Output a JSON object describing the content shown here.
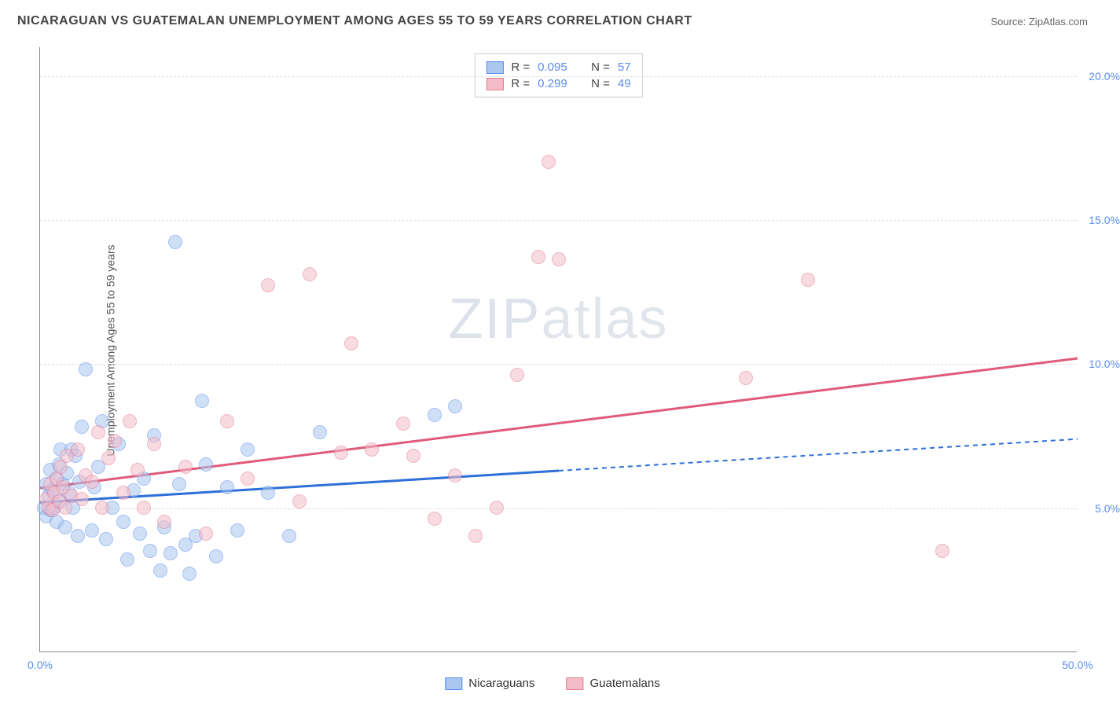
{
  "title": "NICARAGUAN VS GUATEMALAN UNEMPLOYMENT AMONG AGES 55 TO 59 YEARS CORRELATION CHART",
  "source": "Source: ZipAtlas.com",
  "y_axis_label": "Unemployment Among Ages 55 to 59 years",
  "watermark_a": "ZIP",
  "watermark_b": "atlas",
  "chart": {
    "type": "scatter",
    "xlim": [
      0,
      50
    ],
    "ylim": [
      0,
      21
    ],
    "x_ticks": [
      {
        "v": 0,
        "label": "0.0%"
      },
      {
        "v": 50,
        "label": "50.0%"
      }
    ],
    "y_ticks": [
      {
        "v": 5,
        "label": "5.0%"
      },
      {
        "v": 10,
        "label": "10.0%"
      },
      {
        "v": 15,
        "label": "15.0%"
      },
      {
        "v": 20,
        "label": "20.0%"
      }
    ],
    "grid_color": "#dddddd",
    "background_color": "#ffffff",
    "point_radius": 9,
    "point_opacity": 0.55,
    "series": [
      {
        "name": "Nicaraguans",
        "color_fill": "#a9c7ef",
        "color_stroke": "#5b8def",
        "r_label": "R =",
        "r_value": "0.095",
        "n_label": "N =",
        "n_value": "57",
        "trend": {
          "x1": 0,
          "y1": 5.2,
          "x2": 25,
          "y2": 6.3,
          "x3": 50,
          "y3": 7.4,
          "color": "#2e6fd8",
          "width": 3
        },
        "points": [
          [
            0.2,
            5.0
          ],
          [
            0.3,
            4.7
          ],
          [
            0.3,
            5.8
          ],
          [
            0.4,
            5.4
          ],
          [
            0.5,
            6.3
          ],
          [
            0.5,
            4.9
          ],
          [
            0.6,
            5.6
          ],
          [
            0.7,
            5.0
          ],
          [
            0.8,
            6.0
          ],
          [
            0.8,
            4.5
          ],
          [
            0.9,
            6.5
          ],
          [
            1.0,
            5.2
          ],
          [
            1.0,
            7.0
          ],
          [
            1.1,
            5.8
          ],
          [
            1.2,
            4.3
          ],
          [
            1.3,
            6.2
          ],
          [
            1.4,
            5.5
          ],
          [
            1.5,
            7.0
          ],
          [
            1.6,
            5.0
          ],
          [
            1.7,
            6.8
          ],
          [
            1.8,
            4.0
          ],
          [
            1.9,
            5.9
          ],
          [
            2.0,
            7.8
          ],
          [
            2.2,
            9.8
          ],
          [
            2.5,
            4.2
          ],
          [
            2.6,
            5.7
          ],
          [
            2.8,
            6.4
          ],
          [
            3.0,
            8.0
          ],
          [
            3.2,
            3.9
          ],
          [
            3.5,
            5.0
          ],
          [
            3.8,
            7.2
          ],
          [
            4.0,
            4.5
          ],
          [
            4.2,
            3.2
          ],
          [
            4.5,
            5.6
          ],
          [
            4.8,
            4.1
          ],
          [
            5.0,
            6.0
          ],
          [
            5.3,
            3.5
          ],
          [
            5.5,
            7.5
          ],
          [
            5.8,
            2.8
          ],
          [
            6.0,
            4.3
          ],
          [
            6.3,
            3.4
          ],
          [
            6.5,
            14.2
          ],
          [
            6.7,
            5.8
          ],
          [
            7.0,
            3.7
          ],
          [
            7.2,
            2.7
          ],
          [
            7.5,
            4.0
          ],
          [
            7.8,
            8.7
          ],
          [
            8.0,
            6.5
          ],
          [
            8.5,
            3.3
          ],
          [
            9.0,
            5.7
          ],
          [
            9.5,
            4.2
          ],
          [
            10.0,
            7.0
          ],
          [
            11.0,
            5.5
          ],
          [
            12.0,
            4.0
          ],
          [
            13.5,
            7.6
          ],
          [
            19.0,
            8.2
          ],
          [
            20.0,
            8.5
          ]
        ]
      },
      {
        "name": "Guatemalans",
        "color_fill": "#f4bcc9",
        "color_stroke": "#e37b94",
        "r_label": "R =",
        "r_value": "0.299",
        "n_label": "N =",
        "n_value": "49",
        "trend": {
          "x1": 0,
          "y1": 5.7,
          "x2": 50,
          "y2": 10.2,
          "color": "#e15a7a",
          "width": 3
        },
        "points": [
          [
            0.3,
            5.3
          ],
          [
            0.4,
            5.0
          ],
          [
            0.5,
            5.8
          ],
          [
            0.6,
            4.9
          ],
          [
            0.7,
            5.5
          ],
          [
            0.8,
            6.0
          ],
          [
            0.9,
            5.2
          ],
          [
            1.0,
            6.4
          ],
          [
            1.1,
            5.7
          ],
          [
            1.2,
            5.0
          ],
          [
            1.3,
            6.8
          ],
          [
            1.5,
            5.4
          ],
          [
            1.8,
            7.0
          ],
          [
            2.0,
            5.3
          ],
          [
            2.2,
            6.1
          ],
          [
            2.5,
            5.9
          ],
          [
            2.8,
            7.6
          ],
          [
            3.0,
            5.0
          ],
          [
            3.3,
            6.7
          ],
          [
            3.6,
            7.3
          ],
          [
            4.0,
            5.5
          ],
          [
            4.3,
            8.0
          ],
          [
            4.7,
            6.3
          ],
          [
            5.0,
            5.0
          ],
          [
            5.5,
            7.2
          ],
          [
            6.0,
            4.5
          ],
          [
            7.0,
            6.4
          ],
          [
            8.0,
            4.1
          ],
          [
            9.0,
            8.0
          ],
          [
            10.0,
            6.0
          ],
          [
            11.0,
            12.7
          ],
          [
            12.5,
            5.2
          ],
          [
            13.0,
            13.1
          ],
          [
            14.5,
            6.9
          ],
          [
            15.0,
            10.7
          ],
          [
            16.0,
            7.0
          ],
          [
            17.5,
            7.9
          ],
          [
            18.0,
            6.8
          ],
          [
            19.0,
            4.6
          ],
          [
            20.0,
            6.1
          ],
          [
            21.0,
            4.0
          ],
          [
            22.0,
            5.0
          ],
          [
            23.0,
            9.6
          ],
          [
            24.0,
            13.7
          ],
          [
            24.5,
            17.0
          ],
          [
            25.0,
            13.6
          ],
          [
            34.0,
            9.5
          ],
          [
            37.0,
            12.9
          ],
          [
            43.5,
            3.5
          ]
        ]
      }
    ]
  }
}
